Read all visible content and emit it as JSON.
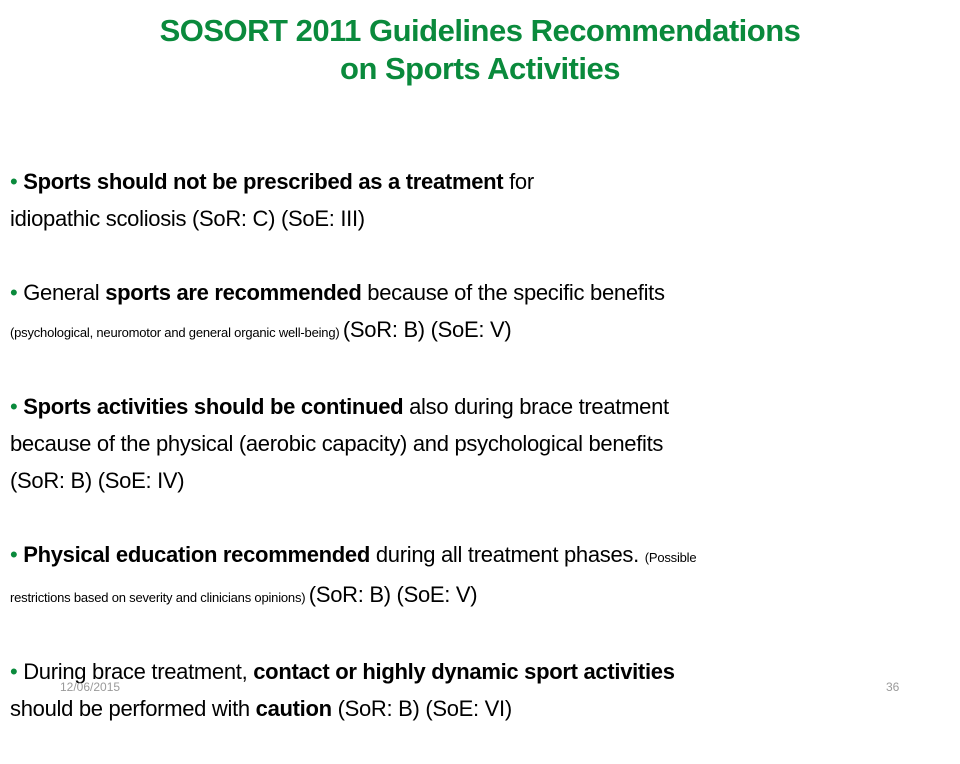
{
  "title": {
    "line1": "SOSORT 2011 Guidelines Recommendations",
    "line2": "on Sports Activities"
  },
  "bullet_color": "#0a8a3c",
  "bullets": [
    {
      "lines": [
        [
          {
            "t": "Sports should not be prescribed as a treatment",
            "b": true
          },
          {
            "t": " for"
          }
        ],
        [
          {
            "t": "idiopathic scoliosis (SoR: C) (SoE: III)"
          }
        ]
      ]
    },
    {
      "lines": [
        [
          {
            "t": "General "
          },
          {
            "t": "sports are recommended",
            "b": true
          },
          {
            "t": " because of the specific benefits"
          }
        ],
        [
          {
            "t": "(psychological, neuromotor and general organic well-being) ",
            "s": true
          },
          {
            "t": "(SoR: B) (SoE: V)"
          }
        ]
      ]
    },
    {
      "lines": [
        [
          {
            "t": "Sports activities should be continued",
            "b": true
          },
          {
            "t": " also during brace treatment"
          }
        ],
        [
          {
            "t": "because of the physical (aerobic capacity) and psychological benefits"
          }
        ],
        [
          {
            "t": "(SoR: B) (SoE: IV)"
          }
        ]
      ]
    },
    {
      "lines": [
        [
          {
            "t": "Physical education recommended",
            "b": true
          },
          {
            "t": " during all treatment phases. "
          },
          {
            "t": "(Possible",
            "s": true
          }
        ],
        [
          {
            "t": "restrictions based on severity and clinicians opinions) ",
            "s": true
          },
          {
            "t": "(SoR: B) (SoE: V)"
          }
        ]
      ]
    },
    {
      "lines": [
        [
          {
            "t": "During brace treatment, "
          },
          {
            "t": "contact or highly dynamic sport activities",
            "b": true
          }
        ],
        [
          {
            "t": "should be performed with "
          },
          {
            "t": "caution",
            "b": true
          },
          {
            "t": " (SoR: B) (SoE: VI)"
          }
        ]
      ]
    }
  ],
  "footer": {
    "date": "12/06/2015",
    "slide_number": "36"
  }
}
